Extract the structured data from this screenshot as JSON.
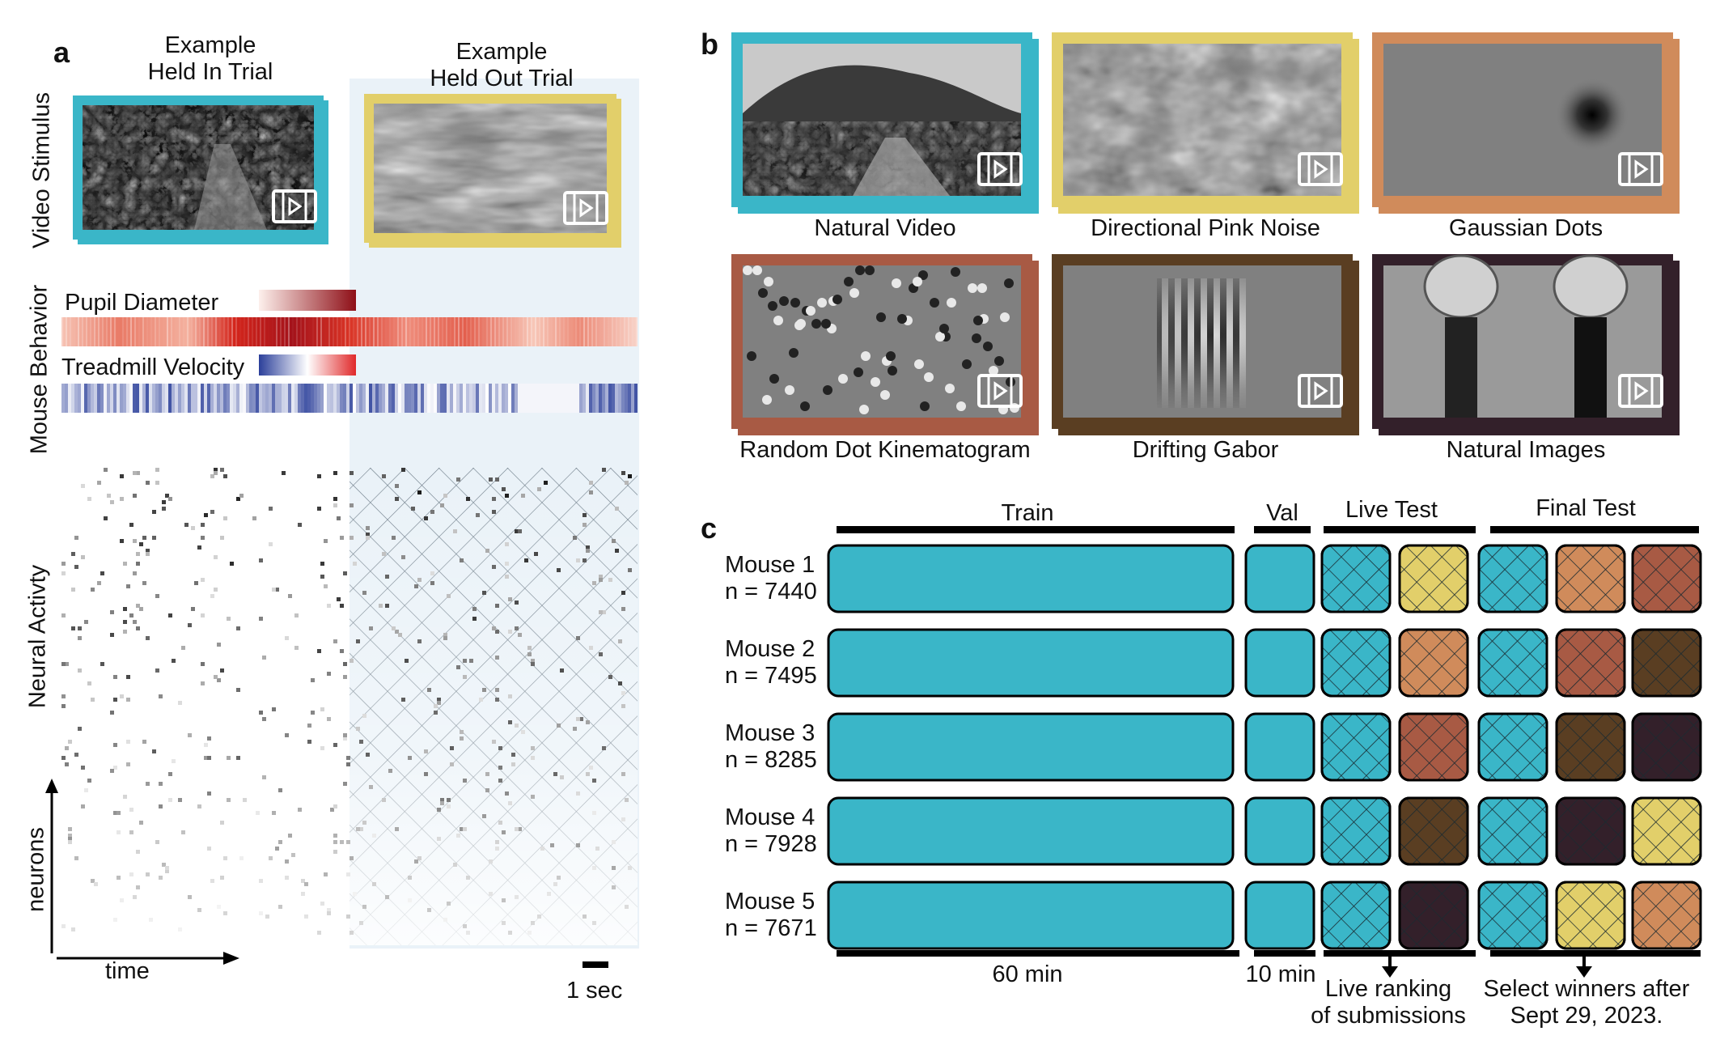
{
  "panel_a": {
    "letter": "a",
    "held_in_title": "Example\nHeld In Trial",
    "held_out_title": "Example\nHeld Out Trial",
    "row_labels": {
      "video": "Video Stimulus",
      "behavior": "Mouse Behavior",
      "neural": "Neural Activty"
    },
    "pupil_label": "Pupil Diameter",
    "treadmill_label": "Treadmill Velocity",
    "axis_neurons": "neurons",
    "axis_time": "time",
    "scale_label": "1 sec"
  },
  "panel_b": {
    "letter": "b",
    "stimuli": [
      {
        "label": "Natural Video",
        "border": "#3ab6c8"
      },
      {
        "label": "Directional Pink Noise",
        "border": "#e2cf6a"
      },
      {
        "label": "Gaussian Dots",
        "border": "#d08b5b"
      },
      {
        "label": "Random Dot Kinematogram",
        "border": "#a85a44"
      },
      {
        "label": "Drifting Gabor",
        "border": "#5a3e22"
      },
      {
        "label": "Natural Images",
        "border": "#33202a"
      }
    ]
  },
  "panel_c": {
    "letter": "c",
    "headers": {
      "train": "Train",
      "val": "Val",
      "live": "Live Test",
      "final": "Final Test"
    },
    "mice": [
      {
        "name": "Mouse 1",
        "n": "n = 7440",
        "live": "#e2cf6a",
        "final": [
          "#d08b5b",
          "#a85a44"
        ]
      },
      {
        "name": "Mouse 2",
        "n": "n = 7495",
        "live": "#d08b5b",
        "final": [
          "#a85a44",
          "#5a3e22"
        ]
      },
      {
        "name": "Mouse 3",
        "n": "n = 8285",
        "live": "#a85a44",
        "final": [
          "#5a3e22",
          "#33202a"
        ]
      },
      {
        "name": "Mouse 4",
        "n": "n = 7928",
        "live": "#5a3e22",
        "final": [
          "#33202a",
          "#e2cf6a"
        ]
      },
      {
        "name": "Mouse 5",
        "n": "n = 7671",
        "live": "#33202a",
        "final": [
          "#e2cf6a",
          "#d08b5b"
        ]
      }
    ],
    "bottom": {
      "train_duration": "60 min",
      "val_duration": "10 min",
      "live_note": "Live ranking\nof submissions",
      "final_note": "Select winners after\nSept 29, 2023."
    }
  },
  "colors": {
    "teal": "#3ab6c8",
    "shade": "#eaf2f8"
  }
}
